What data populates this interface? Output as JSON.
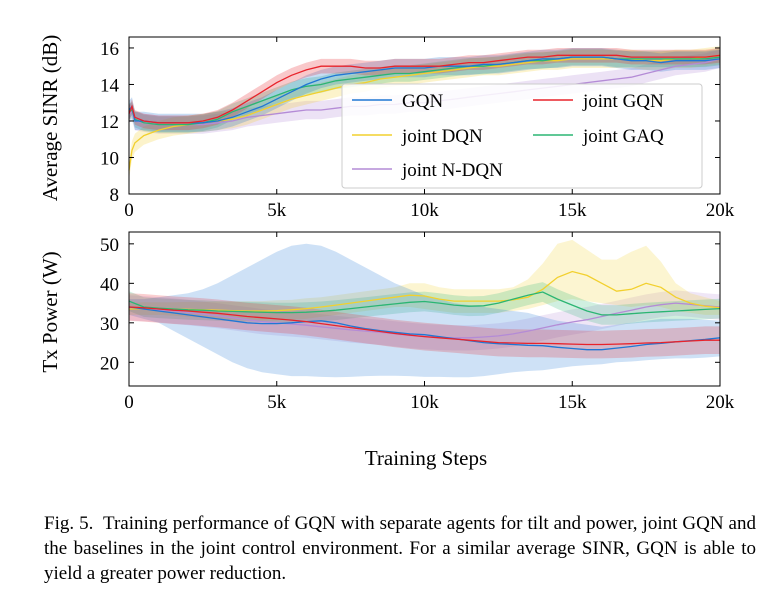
{
  "chart_data": [
    {
      "type": "line",
      "title": "",
      "xlabel": "",
      "ylabel": "Average SINR (dB)",
      "xlim": [
        0,
        20000
      ],
      "ylim": [
        8,
        16.6
      ],
      "x_ticks": [
        0,
        5000,
        10000,
        15000,
        20000
      ],
      "x_tick_labels": [
        "0",
        "5k",
        "10k",
        "15k",
        "20k"
      ],
      "y_ticks": [
        8,
        10,
        12,
        14,
        16
      ],
      "y_tick_labels": [
        "8",
        "10",
        "12",
        "14",
        "16"
      ],
      "grid": false,
      "legend": {
        "placement": "center-right",
        "columns": 2,
        "order": [
          "GQN",
          "joint GQN",
          "joint DQN",
          "joint GAQ",
          "joint N-DQN"
        ]
      },
      "x": [
        0,
        100,
        200,
        500,
        1000,
        1500,
        2000,
        2500,
        3000,
        3500,
        4000,
        4500,
        5000,
        5500,
        6000,
        6500,
        7000,
        7500,
        8000,
        8500,
        9000,
        9500,
        10000,
        10500,
        11000,
        11500,
        12000,
        12500,
        13000,
        13500,
        14000,
        14500,
        15000,
        15500,
        16000,
        16500,
        17000,
        17500,
        18000,
        18500,
        19000,
        19500,
        20000
      ],
      "series": [
        {
          "name": "GQN",
          "color": "#1f77d4",
          "values": [
            12.6,
            12.8,
            12.0,
            12.0,
            11.9,
            11.9,
            11.9,
            11.9,
            12.0,
            12.2,
            12.5,
            12.8,
            13.2,
            13.6,
            14.0,
            14.3,
            14.5,
            14.6,
            14.7,
            14.8,
            14.9,
            14.9,
            14.9,
            15.0,
            15.0,
            15.0,
            15.1,
            15.1,
            15.2,
            15.3,
            15.4,
            15.4,
            15.5,
            15.5,
            15.5,
            15.4,
            15.3,
            15.3,
            15.2,
            15.3,
            15.3,
            15.3,
            15.4
          ],
          "band": 0.5
        },
        {
          "name": "joint GQN",
          "color": "#e8232b",
          "values": [
            12.4,
            12.8,
            12.2,
            12.0,
            11.9,
            11.9,
            11.9,
            12.0,
            12.2,
            12.6,
            13.1,
            13.6,
            14.1,
            14.5,
            14.8,
            15.0,
            15.0,
            15.0,
            14.9,
            14.9,
            15.0,
            15.0,
            15.0,
            15.0,
            15.1,
            15.2,
            15.2,
            15.3,
            15.4,
            15.5,
            15.5,
            15.6,
            15.6,
            15.6,
            15.6,
            15.6,
            15.5,
            15.5,
            15.5,
            15.5,
            15.5,
            15.5,
            15.6
          ],
          "band": 0.4
        },
        {
          "name": "joint DQN",
          "color": "#f2d02e",
          "values": [
            9.3,
            10.4,
            10.8,
            11.2,
            11.5,
            11.7,
            11.8,
            11.9,
            12.0,
            12.1,
            12.3,
            12.6,
            12.9,
            13.2,
            13.4,
            13.6,
            13.8,
            14.0,
            14.1,
            14.3,
            14.4,
            14.5,
            14.6,
            14.7,
            14.8,
            14.9,
            15.0,
            15.0,
            15.1,
            15.2,
            15.3,
            15.3,
            15.4,
            15.4,
            15.4,
            15.4,
            15.4,
            15.3,
            15.3,
            15.4,
            15.4,
            15.5,
            15.6
          ],
          "band": 0.5
        },
        {
          "name": "joint GAQ",
          "color": "#2bb573",
          "values": [
            12.5,
            12.6,
            12.1,
            11.9,
            11.8,
            11.8,
            11.8,
            11.9,
            12.1,
            12.5,
            12.8,
            13.1,
            13.4,
            13.7,
            13.9,
            14.0,
            14.2,
            14.3,
            14.4,
            14.5,
            14.6,
            14.6,
            14.7,
            14.8,
            14.9,
            15.0,
            15.0,
            15.1,
            15.2,
            15.3,
            15.3,
            15.4,
            15.5,
            15.5,
            15.5,
            15.4,
            15.4,
            15.4,
            15.4,
            15.4,
            15.4,
            15.4,
            15.5
          ],
          "band": 0.45
        },
        {
          "name": "joint N-DQN",
          "color": "#b48bd6",
          "values": [
            12.4,
            12.5,
            12.0,
            11.9,
            11.8,
            11.8,
            11.8,
            11.8,
            11.9,
            12.0,
            12.2,
            12.3,
            12.4,
            12.5,
            12.6,
            12.6,
            12.7,
            12.8,
            12.8,
            12.9,
            12.9,
            13.0,
            13.0,
            13.1,
            13.2,
            13.3,
            13.4,
            13.5,
            13.6,
            13.7,
            13.8,
            13.9,
            14.0,
            14.1,
            14.2,
            14.3,
            14.4,
            14.6,
            14.8,
            15.0,
            15.1,
            15.2,
            15.4
          ],
          "band": 0.5
        }
      ]
    },
    {
      "type": "line",
      "title": "",
      "xlabel": "Training Steps",
      "ylabel": "Tx Power (W)",
      "xlim": [
        0,
        20000
      ],
      "ylim": [
        14,
        53
      ],
      "x_ticks": [
        0,
        5000,
        10000,
        15000,
        20000
      ],
      "x_tick_labels": [
        "0",
        "5k",
        "10k",
        "15k",
        "20k"
      ],
      "y_ticks": [
        20,
        30,
        40,
        50
      ],
      "y_tick_labels": [
        "20",
        "30",
        "40",
        "50"
      ],
      "grid": false,
      "x": [
        0,
        500,
        1000,
        1500,
        2000,
        2500,
        3000,
        3500,
        4000,
        4500,
        5000,
        5500,
        6000,
        6500,
        7000,
        7500,
        8000,
        8500,
        9000,
        9500,
        10000,
        10500,
        11000,
        11500,
        12000,
        12500,
        13000,
        13500,
        14000,
        14500,
        15000,
        15500,
        16000,
        16500,
        17000,
        17500,
        18000,
        18500,
        19000,
        19500,
        20000
      ],
      "series": [
        {
          "name": "GQN",
          "color": "#1f77d4",
          "values": [
            34,
            33.5,
            33,
            32.5,
            32,
            31.5,
            31,
            30.5,
            30,
            29.8,
            29.8,
            30,
            30.3,
            30.5,
            30,
            29.2,
            28.5,
            28,
            27.6,
            27.2,
            27,
            26.5,
            26,
            25.5,
            25,
            24.7,
            24.5,
            24.3,
            24.2,
            23.8,
            23.5,
            23.2,
            23.2,
            23.6,
            24,
            24.5,
            24.8,
            25.2,
            25.5,
            25.8,
            26.2
          ],
          "lower": [
            32,
            31,
            30,
            28,
            26,
            24,
            22,
            20,
            18.5,
            17.5,
            17,
            16.5,
            16.5,
            16.3,
            16.2,
            16.3,
            16.5,
            16.6,
            16.6,
            16.5,
            16.3,
            16.3,
            16.2,
            16.2,
            16.5,
            17,
            17.5,
            17.8,
            18,
            18.5,
            19,
            19.3,
            19.5,
            20,
            20.2,
            20.5,
            20.8,
            21,
            21,
            21.2,
            21.5
          ],
          "upper": [
            36,
            36,
            36.5,
            37,
            37.5,
            38.5,
            40,
            42,
            44,
            46,
            48,
            49.5,
            50,
            49.5,
            48,
            46,
            44,
            42,
            40,
            38.5,
            37,
            36,
            35,
            34.5,
            34,
            33.5,
            33,
            32.5,
            31.5,
            30.5,
            30,
            29.5,
            29,
            29.5,
            30,
            30.5,
            31,
            31,
            31,
            30.8,
            30.5
          ]
        },
        {
          "name": "joint GQN",
          "color": "#e8232b",
          "values": [
            34,
            33.8,
            33.5,
            33.2,
            33,
            32.7,
            32.4,
            32,
            31.6,
            31.3,
            31,
            30.7,
            30.3,
            29.8,
            29.3,
            28.8,
            28.3,
            27.8,
            27.3,
            26.9,
            26.5,
            26.2,
            25.9,
            25.6,
            25.3,
            25,
            24.9,
            24.8,
            24.8,
            24.7,
            24.6,
            24.5,
            24.5,
            24.6,
            24.7,
            24.9,
            25,
            25.2,
            25.4,
            25.6,
            25.6
          ],
          "band": 3.5
        },
        {
          "name": "joint DQN",
          "color": "#f2d02e",
          "values": [
            33.5,
            33.6,
            33.6,
            33.5,
            33.4,
            33.3,
            33.2,
            33.1,
            33,
            33,
            33.1,
            33.3,
            33.6,
            34,
            34.5,
            35,
            35.5,
            36,
            36.5,
            37,
            36.8,
            36,
            35.5,
            35.5,
            35.5,
            35.5,
            35.8,
            36.5,
            38.5,
            41.5,
            43,
            42,
            40,
            38,
            38.5,
            40,
            39,
            36.5,
            35,
            34.2,
            33.8
          ],
          "lower": [
            32,
            32,
            32,
            31.8,
            31.5,
            31.3,
            31,
            30.8,
            30.5,
            30.5,
            30.5,
            30.8,
            31,
            31.5,
            32,
            32.5,
            33,
            33.5,
            34,
            34,
            33.5,
            33,
            32.5,
            32.5,
            32.5,
            32.5,
            33,
            33.5,
            34.5,
            35.5,
            36,
            35.5,
            35,
            34.5,
            34,
            34.5,
            34,
            33,
            32.5,
            32,
            32
          ],
          "upper": [
            35,
            35.2,
            35.2,
            35.2,
            35.3,
            35.3,
            35.4,
            35.4,
            35.5,
            35.5,
            35.7,
            35.8,
            36.2,
            36.5,
            37,
            37.5,
            38,
            38.5,
            39,
            40,
            40,
            39,
            38.5,
            38.5,
            38.5,
            38.5,
            39,
            41,
            45,
            50,
            51,
            48.5,
            46,
            46,
            48,
            49.5,
            45.5,
            40,
            37.5,
            36.5,
            35.5
          ]
        },
        {
          "name": "joint GAQ",
          "color": "#2bb573",
          "values": [
            35.5,
            34,
            33.7,
            33.5,
            33.3,
            33.2,
            33,
            32.9,
            32.8,
            32.7,
            32.6,
            32.6,
            32.7,
            32.9,
            33.2,
            33.6,
            34,
            34.4,
            34.8,
            35.2,
            35.4,
            35,
            34.5,
            34.2,
            34.3,
            35,
            36,
            37,
            37.8,
            36,
            34.5,
            33,
            32,
            32,
            32.3,
            32.6,
            32.8,
            33,
            33.2,
            33.4,
            33.6
          ],
          "band": 2.5
        },
        {
          "name": "joint N-DQN",
          "color": "#b48bd6",
          "values": [
            33.8,
            33.6,
            33.3,
            33,
            32.6,
            32.2,
            31.8,
            31.3,
            30.8,
            30.3,
            30,
            29.7,
            29.4,
            29,
            28.6,
            28.2,
            27.9,
            27.6,
            27.2,
            26.8,
            26.5,
            26.3,
            26.2,
            26.2,
            26.4,
            26.7,
            27.2,
            27.9,
            28.7,
            29.5,
            30.2,
            30.8,
            31.6,
            32.4,
            33.2,
            34,
            34.6,
            35,
            34.7,
            34.3,
            34
          ],
          "band": 3.2
        }
      ]
    }
  ],
  "caption": {
    "label": "Fig. 5.",
    "text": "Training performance of GQN with separate agents for tilt and power, joint GQN and the baselines in the joint control environment. For a similar average SINR, GQN is able to yield a greater power reduction."
  }
}
